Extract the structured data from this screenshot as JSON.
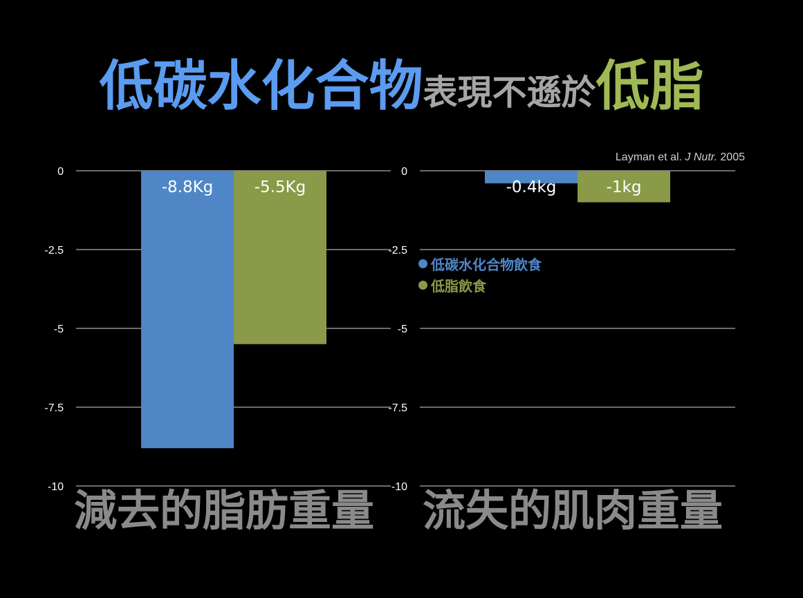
{
  "title": {
    "part1": "低碳水化合物",
    "part2": "表現不遜於",
    "part3": "低脂"
  },
  "citation": {
    "authors": "Layman et al.",
    "journal": "J Nutr.",
    "year": "2005"
  },
  "legend": [
    {
      "label": "低碳水化合物飲食",
      "color": "#4f86c6"
    },
    {
      "label": "低脂飲食",
      "color": "#8a9a48"
    }
  ],
  "colors": {
    "low_carb": "#4f86c6",
    "low_fat": "#8a9a48",
    "title_blue": "#5b9bf0",
    "title_grey": "#a6a6a6",
    "title_green": "#9fb955",
    "gridline": "#d9d9d9",
    "caption": "#8a8a8a"
  },
  "chart_data": [
    {
      "type": "bar",
      "caption": "減去的脂肪重量",
      "ylim": [
        -10,
        0
      ],
      "yticks": [
        0,
        -2.5,
        -5,
        -7.5,
        -10
      ],
      "ytick_labels": [
        "0",
        "-2.5",
        "-5",
        "-7.5",
        "-10"
      ],
      "grid": true,
      "series": [
        {
          "name": "低碳水化合物飲食",
          "values": [
            -8.8
          ],
          "data_labels": [
            "-8.8Kg"
          ]
        },
        {
          "name": "低脂飲食",
          "values": [
            -5.5
          ],
          "data_labels": [
            "-5.5Kg"
          ]
        }
      ]
    },
    {
      "type": "bar",
      "caption": "流失的肌肉重量",
      "ylim": [
        -10,
        0
      ],
      "yticks": [
        0,
        -2.5,
        -5,
        -7.5,
        -10
      ],
      "ytick_labels": [
        "0",
        "-2.5",
        "-5",
        "-7.5",
        "-10"
      ],
      "grid": true,
      "legend_position": "top-left",
      "series": [
        {
          "name": "低碳水化合物飲食",
          "values": [
            -0.4
          ],
          "data_labels": [
            "-0.4kg"
          ]
        },
        {
          "name": "低脂飲食",
          "values": [
            -1
          ],
          "data_labels": [
            "-1kg"
          ]
        }
      ]
    }
  ]
}
